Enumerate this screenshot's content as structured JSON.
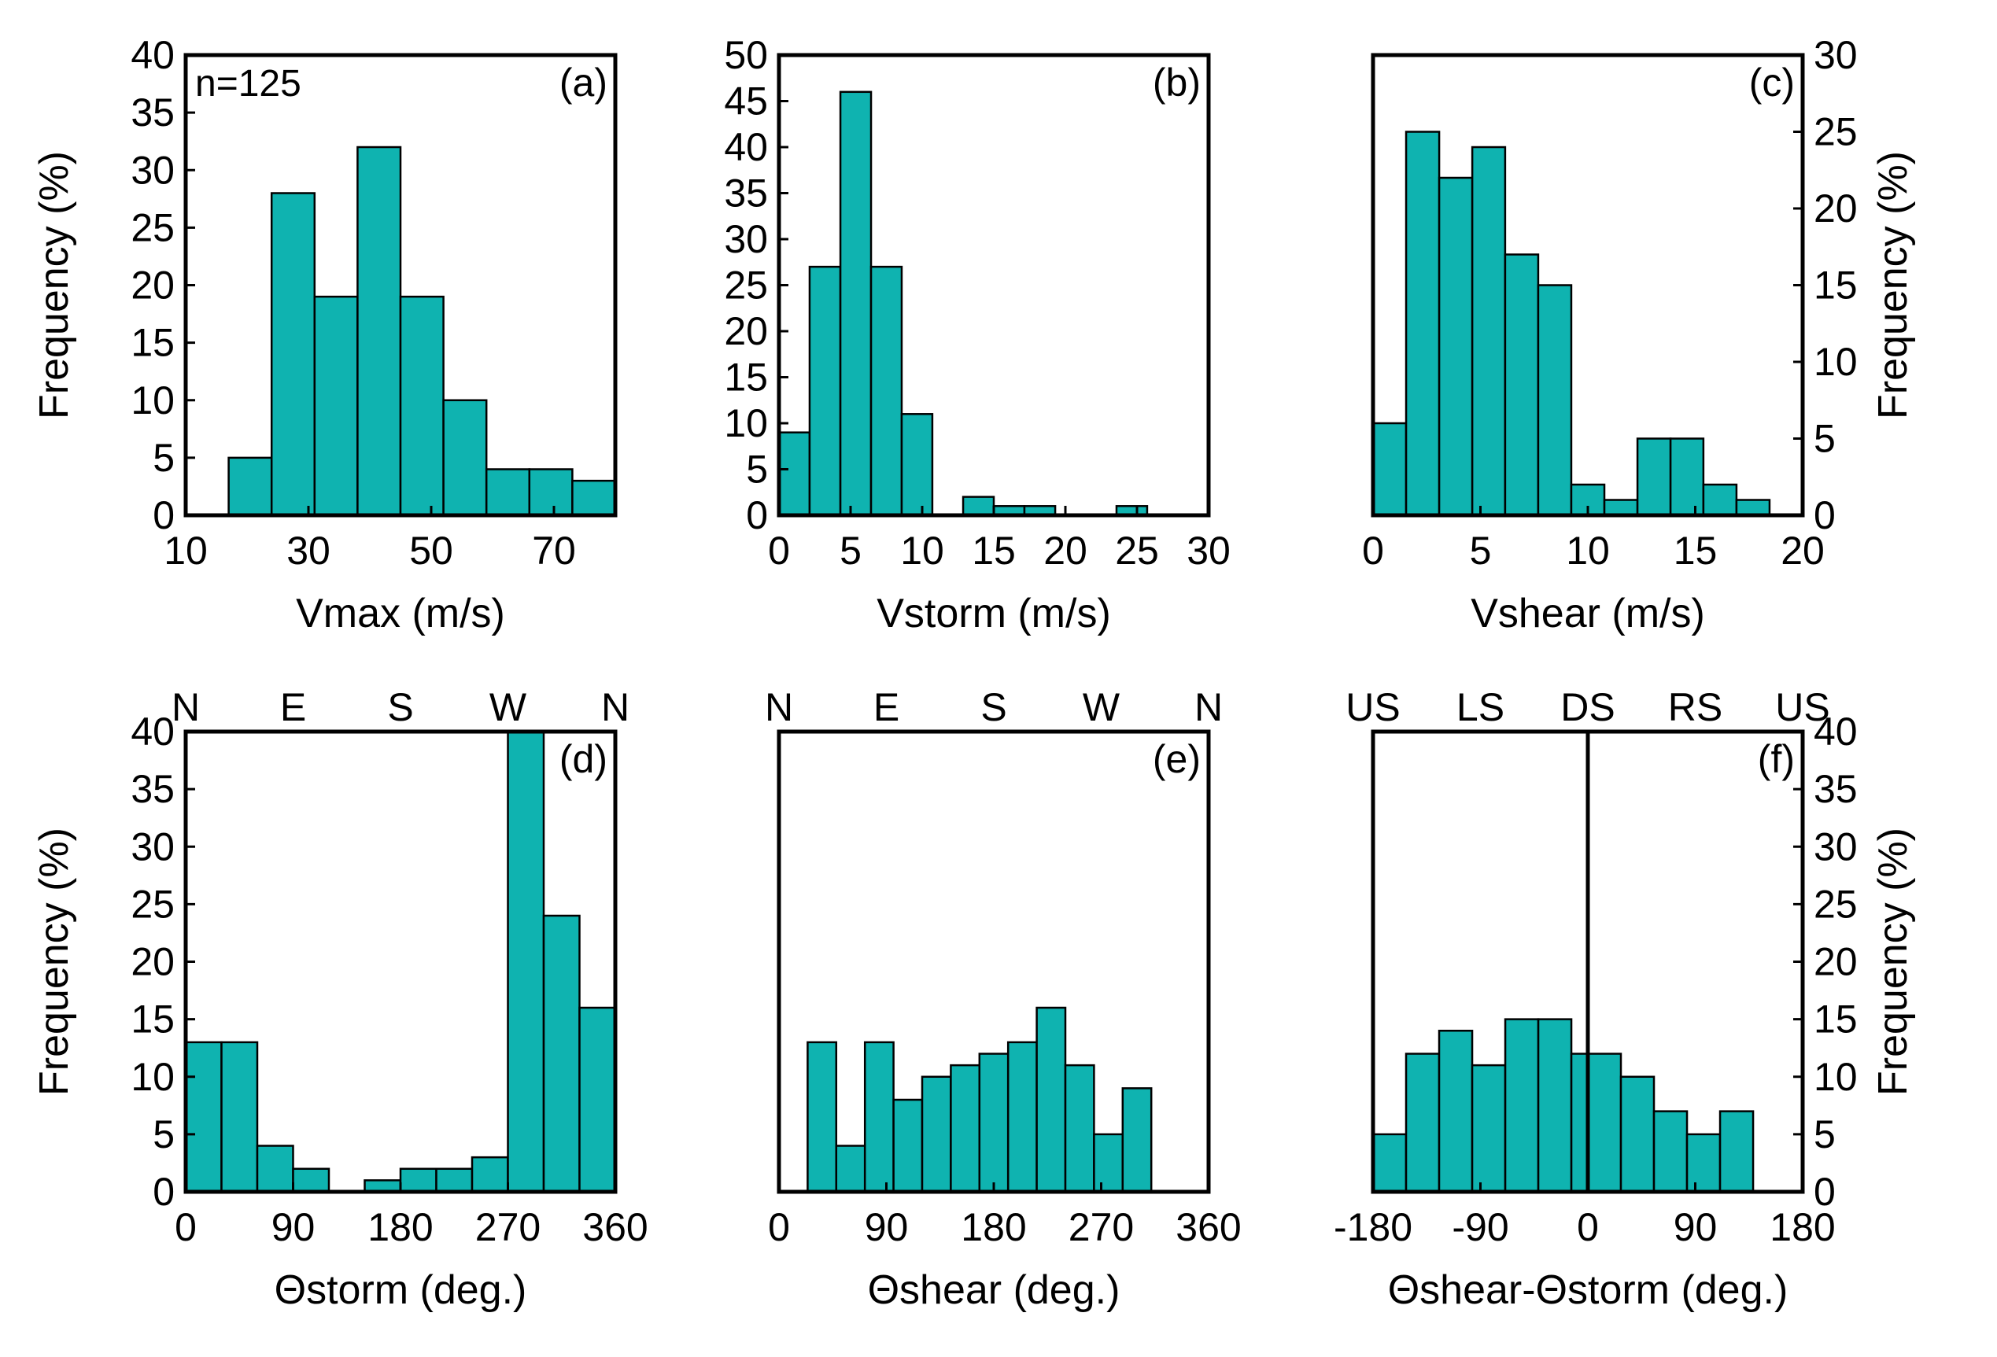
{
  "chart_data": [
    {
      "id": "a",
      "type": "bar",
      "panel_label": "(a)",
      "annotation": "n=125",
      "xlabel": "Vmax (m/s)",
      "ylabel": "Frequency (%)",
      "xlim": [
        10,
        80
      ],
      "ylim": [
        0,
        40
      ],
      "xticks": [
        10,
        30,
        50,
        70
      ],
      "xtick_labels": [
        "10",
        "30",
        "50",
        "70"
      ],
      "yticks": [
        0,
        5,
        10,
        15,
        20,
        25,
        30,
        35,
        40
      ],
      "yaxis_side": "left",
      "top_labels": [],
      "bin_edges": [
        10,
        17,
        24,
        31,
        38,
        45,
        52,
        59,
        66,
        73,
        80
      ],
      "values": [
        0,
        5,
        28,
        19,
        32,
        19,
        10,
        4,
        4,
        3
      ]
    },
    {
      "id": "b",
      "type": "bar",
      "panel_label": "(b)",
      "xlabel": "Vstorm (m/s)",
      "ylabel": "",
      "xlim": [
        0,
        30
      ],
      "ylim": [
        0,
        50
      ],
      "xticks": [
        0,
        5,
        10,
        15,
        20,
        25,
        30
      ],
      "xtick_labels": [
        "0",
        "5",
        "10",
        "15",
        "20",
        "25",
        "30"
      ],
      "yticks": [
        0,
        5,
        10,
        15,
        20,
        25,
        30,
        35,
        40,
        45,
        50
      ],
      "yaxis_side": "left",
      "top_labels": [],
      "bin_edges": [
        0,
        2.14,
        4.29,
        6.43,
        8.57,
        10.71,
        12.86,
        15,
        17.14,
        19.29,
        21.43,
        23.57,
        25.71,
        27.86,
        30
      ],
      "values": [
        9,
        27,
        46,
        27,
        11,
        0,
        2,
        1,
        1,
        0,
        0,
        1,
        0,
        0
      ]
    },
    {
      "id": "c",
      "type": "bar",
      "panel_label": "(c)",
      "xlabel": "Vshear (m/s)",
      "ylabel": "Frequency (%)",
      "xlim": [
        0,
        20
      ],
      "ylim": [
        0,
        30
      ],
      "xticks": [
        0,
        5,
        10,
        15,
        20
      ],
      "xtick_labels": [
        "0",
        "5",
        "10",
        "15",
        "20"
      ],
      "yticks": [
        0,
        5,
        10,
        15,
        20,
        25,
        30
      ],
      "yaxis_side": "right",
      "top_labels": [],
      "bin_edges": [
        0,
        1.54,
        3.08,
        4.62,
        6.15,
        7.69,
        9.23,
        10.77,
        12.31,
        13.85,
        15.38,
        16.92,
        18.46,
        20
      ],
      "values": [
        6,
        25,
        22,
        24,
        17,
        15,
        2,
        1,
        5,
        5,
        2,
        1,
        0
      ]
    },
    {
      "id": "d",
      "type": "bar",
      "panel_label": "(d)",
      "xlabel": "Θstorm (deg.)",
      "ylabel": "Frequency (%)",
      "xlim": [
        0,
        360
      ],
      "ylim": [
        0,
        40
      ],
      "xticks": [
        0,
        90,
        180,
        270,
        360
      ],
      "xtick_labels": [
        "0",
        "90",
        "180",
        "270",
        "360"
      ],
      "yticks": [
        0,
        5,
        10,
        15,
        20,
        25,
        30,
        35,
        40
      ],
      "yaxis_side": "left",
      "top_labels": [
        {
          "text": "N",
          "at": 0
        },
        {
          "text": "E",
          "at": 90
        },
        {
          "text": "S",
          "at": 180
        },
        {
          "text": "W",
          "at": 270
        },
        {
          "text": "N",
          "at": 360
        }
      ],
      "bin_edges": [
        0,
        30,
        60,
        90,
        120,
        150,
        180,
        210,
        240,
        270,
        300,
        330,
        360
      ],
      "values": [
        13,
        13,
        4,
        2,
        0,
        1,
        2,
        2,
        3,
        40,
        24,
        16
      ]
    },
    {
      "id": "e",
      "type": "bar",
      "panel_label": "(e)",
      "xlabel": "Θshear (deg.)",
      "ylabel": "",
      "xlim": [
        0,
        360
      ],
      "ylim": [
        0,
        40
      ],
      "xticks": [
        0,
        90,
        180,
        270,
        360
      ],
      "xtick_labels": [
        "0",
        "90",
        "180",
        "270",
        "360"
      ],
      "yticks": [],
      "yaxis_side": "none",
      "top_labels": [
        {
          "text": "N",
          "at": 0
        },
        {
          "text": "E",
          "at": 90
        },
        {
          "text": "S",
          "at": 180
        },
        {
          "text": "W",
          "at": 270
        },
        {
          "text": "N",
          "at": 360
        }
      ],
      "bin_edges": [
        0,
        24,
        48,
        72,
        96,
        120,
        144,
        168,
        192,
        216,
        240,
        264,
        288,
        312,
        336,
        360
      ],
      "values": [
        0,
        13,
        4,
        13,
        8,
        10,
        11,
        12,
        13,
        16,
        11,
        5,
        9,
        0,
        0
      ]
    },
    {
      "id": "f",
      "type": "bar",
      "panel_label": "(f)",
      "xlabel": "Θshear-Θstorm (deg.)",
      "ylabel": "Frequency (%)",
      "xlim": [
        -180,
        180
      ],
      "ylim": [
        0,
        40
      ],
      "xticks": [
        -180,
        -90,
        0,
        90,
        180
      ],
      "xtick_labels": [
        "-180",
        "-90",
        "0",
        "90",
        "180"
      ],
      "yticks": [
        0,
        5,
        10,
        15,
        20,
        25,
        30,
        35,
        40
      ],
      "yaxis_side": "right",
      "top_labels": [
        {
          "text": "US",
          "at": -180
        },
        {
          "text": "LS",
          "at": -90
        },
        {
          "text": "DS",
          "at": 0
        },
        {
          "text": "RS",
          "at": 90
        },
        {
          "text": "US",
          "at": 180
        }
      ],
      "reference_line_x": 0,
      "bin_edges": [
        -180,
        -152.3,
        -124.6,
        -96.9,
        -69.2,
        -41.5,
        -13.8,
        0,
        27.7,
        55.4,
        83.1,
        110.8,
        138.5,
        166.2,
        180
      ],
      "values": [
        5,
        12,
        14,
        11,
        15,
        15,
        12,
        12,
        10,
        7,
        5,
        7,
        0,
        0
      ]
    }
  ]
}
